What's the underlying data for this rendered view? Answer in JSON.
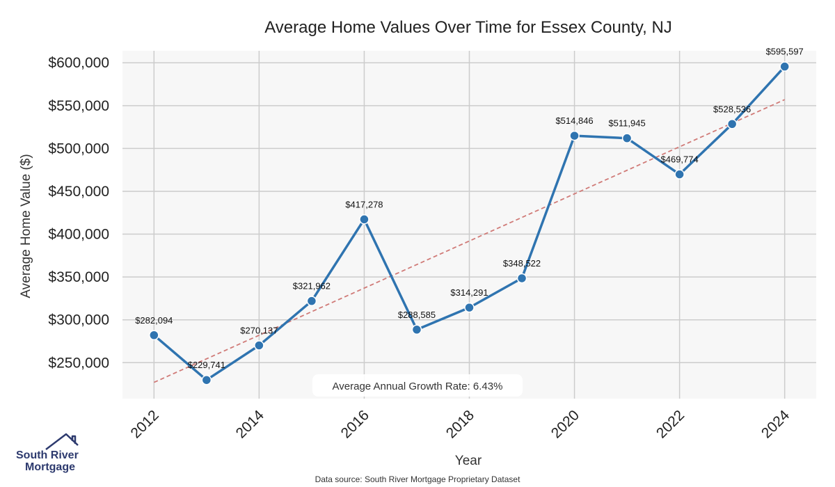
{
  "chart_data": {
    "type": "line",
    "title": "Average Home Values Over Time for Essex County, NJ",
    "xlabel": "Year",
    "ylabel": "Average Home Value ($)",
    "x": [
      2012,
      2013,
      2014,
      2015,
      2016,
      2017,
      2018,
      2019,
      2020,
      2021,
      2022,
      2023,
      2024
    ],
    "series": [
      {
        "values": [
          282094,
          229741,
          270137,
          321962,
          417278,
          288585,
          314291,
          348522,
          514846,
          511945,
          469774,
          528536,
          595597
        ],
        "labels": [
          "$282,094",
          "$229,741",
          "$270,137",
          "$321,962",
          "$417,278",
          "$288,585",
          "$314,291",
          "$348,522",
          "$514,846",
          "$511,945",
          "$469,774",
          "$528,536",
          "$595,597"
        ],
        "color": "#2f74b0"
      }
    ],
    "trend": {
      "start_value": 227000,
      "end_value": 557000,
      "color": "#d07a77",
      "style": "dashed"
    },
    "xticks": [
      2012,
      2014,
      2016,
      2018,
      2020,
      2022,
      2024
    ],
    "xtick_labels": [
      "2012",
      "2014",
      "2016",
      "2018",
      "2020",
      "2022",
      "2024"
    ],
    "yticks": [
      250000,
      300000,
      350000,
      400000,
      450000,
      500000,
      550000,
      600000
    ],
    "ytick_labels": [
      "$250,000",
      "$300,000",
      "$350,000",
      "$400,000",
      "$450,000",
      "$500,000",
      "$550,000",
      "$600,000"
    ],
    "xlim": [
      2011.4,
      2024.6
    ],
    "ylim": [
      208000,
      614000
    ],
    "grid": true,
    "background": "#f7f7f7",
    "annotation": "Average Annual Growth Rate: 6.43%",
    "source_note": "Data source: South River Mortgage Proprietary Dataset"
  },
  "logo": {
    "line1": "South River",
    "line2": "Mortgage",
    "color": "#2d3a6e"
  }
}
